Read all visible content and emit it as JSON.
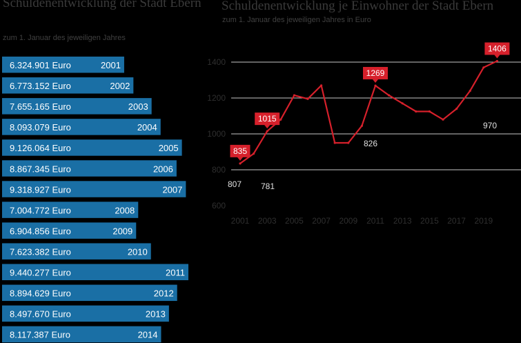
{
  "left_chart": {
    "title": "Schuldenentwicklung der Stadt Ebern",
    "subtitle": "zum 1. Januar des jeweiligen Jahres",
    "bar_color": "#1a6fa5"
  },
  "right_chart": {
    "title": "Schuldenentwicklung je Einwohner der Stadt Ebern",
    "subtitle": "zum 1. Januar des jeweiligen Jahres in Euro",
    "line_color": "#d6202b",
    "grid_color": "#c8c8c8"
  },
  "chart_data": [
    {
      "type": "bar",
      "orientation": "horizontal",
      "title": "Schuldenentwicklung der Stadt Ebern",
      "subtitle": "zum 1. Januar des jeweiligen Jahres",
      "categories": [
        "2001",
        "2002",
        "2003",
        "2004",
        "2005",
        "2006",
        "2007",
        "2008",
        "2009",
        "2010",
        "2011",
        "2012",
        "2013",
        "2014"
      ],
      "values": [
        6324901,
        6773152,
        7655165,
        8093079,
        9126064,
        8867345,
        9318927,
        7004772,
        6904856,
        7623382,
        9440277,
        8894629,
        8497670,
        8117387
      ],
      "labels": [
        "6.324.901 Euro",
        "6.773.152 Euro",
        "7.655.165 Euro",
        "8.093.079 Euro",
        "9.126.064 Euro",
        "8.867.345 Euro",
        "9.318.927 Euro",
        "7.004.772 Euro",
        "6.904.856 Euro",
        "7.623.382 Euro",
        "9.440.277 Euro",
        "8.894.629 Euro",
        "8.497.670 Euro",
        "8.117.387 Euro"
      ]
    },
    {
      "type": "line",
      "title": "Schuldenentwicklung je Einwohner der Stadt Ebern",
      "subtitle": "zum 1. Januar des jeweiligen Jahres in Euro",
      "x": [
        2001,
        2002,
        2003,
        2004,
        2005,
        2006,
        2007,
        2008,
        2009,
        2010,
        2011,
        2012,
        2013,
        2014,
        2015,
        2016,
        2017,
        2018,
        2019,
        2020
      ],
      "y": [
        835,
        890,
        1015,
        1080,
        1215,
        1195,
        1270,
        950,
        950,
        1045,
        1269,
        1215,
        1170,
        1125,
        1125,
        1080,
        1140,
        1240,
        1370,
        1406
      ],
      "xlim": [
        2001,
        2020
      ],
      "ylim": [
        600,
        1440
      ],
      "xticks": [
        "2001",
        "2003",
        "2005",
        "2007",
        "2009",
        "2011",
        "2013",
        "2015",
        "2017",
        "2019"
      ],
      "yticks": [
        "600",
        "800",
        "1000",
        "1200",
        "1400"
      ],
      "gridlines": [
        800,
        1000,
        1200,
        1400
      ],
      "highlights": [
        {
          "label": "835",
          "x": 2001,
          "y": 835
        },
        {
          "label": "1015",
          "x": 2003,
          "y": 1015
        },
        {
          "label": "1269",
          "x": 2011,
          "y": 1269
        },
        {
          "label": "1406",
          "x": 2020,
          "y": 1406
        }
      ],
      "annotations": [
        {
          "label": "807",
          "x": 2001
        },
        {
          "label": "781",
          "x": 2003
        },
        {
          "label": "826",
          "x": 2011
        },
        {
          "label": "970",
          "x": 2019
        }
      ]
    }
  ]
}
